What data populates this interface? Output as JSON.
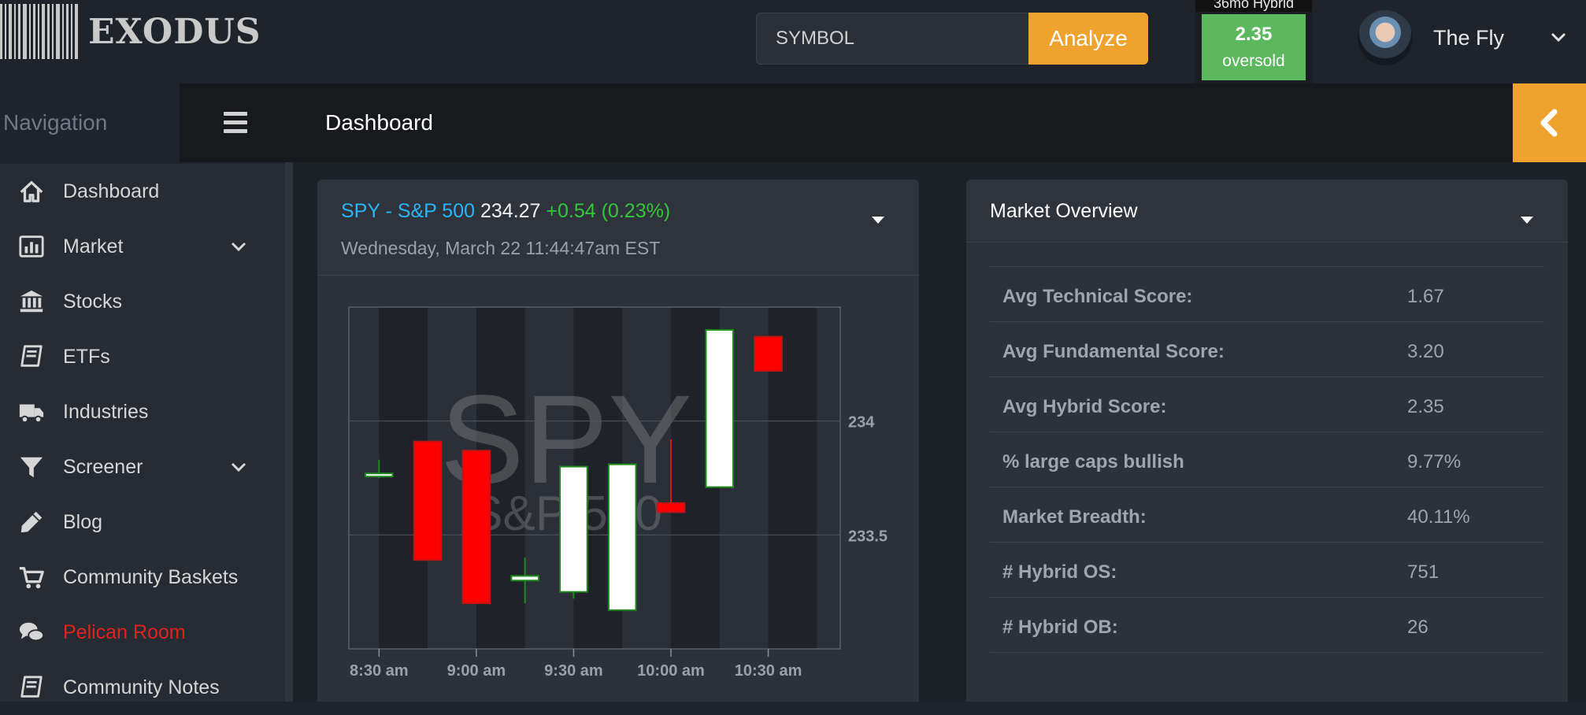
{
  "brand": {
    "name": "EXODUS"
  },
  "search": {
    "placeholder": "SYMBOL",
    "button_label": "Analyze"
  },
  "hybrid": {
    "label": "36mo Hybrid",
    "value": "2.35",
    "status": "oversold",
    "color": "#5cb85c"
  },
  "user": {
    "name": "The Fly"
  },
  "navigation": {
    "title": "Navigation",
    "items": [
      {
        "label": "Dashboard",
        "icon": "home-icon",
        "color": "#d6d6d6",
        "chevron": false
      },
      {
        "label": "Market",
        "icon": "bar-chart-icon",
        "color": "#d6d6d6",
        "chevron": true
      },
      {
        "label": "Stocks",
        "icon": "bank-icon",
        "color": "#d6d6d6",
        "chevron": false
      },
      {
        "label": "ETFs",
        "icon": "book-icon",
        "color": "#d6d6d6",
        "chevron": false
      },
      {
        "label": "Industries",
        "icon": "truck-icon",
        "color": "#d6d6d6",
        "chevron": false
      },
      {
        "label": "Screener",
        "icon": "filter-icon",
        "color": "#d6d6d6",
        "chevron": true
      },
      {
        "label": "Blog",
        "icon": "pencil-icon",
        "color": "#d6d6d6",
        "chevron": false
      },
      {
        "label": "Community Baskets",
        "icon": "cart-icon",
        "color": "#d6d6d6",
        "chevron": false
      },
      {
        "label": "Pelican Room",
        "icon": "chat-icon",
        "color": "#e0231c",
        "chevron": false
      },
      {
        "label": "Community Notes",
        "icon": "book-icon",
        "color": "#d6d6d6",
        "chevron": false
      }
    ]
  },
  "header": {
    "title": "Dashboard"
  },
  "spy_card": {
    "symbol": "SPY - S&P 500",
    "price": "234.27",
    "change": "+0.54 (0.23%)",
    "date": "Wednesday, March 22 11:44:47am EST",
    "watermark_symbol": "SPY",
    "watermark_name": "S&P 500"
  },
  "chart_data": {
    "type": "candlestick",
    "x_ticks": [
      "8:30 am",
      "9:00 am",
      "9:30 am",
      "10:00 am",
      "10:30 am"
    ],
    "y_ticks": [
      234,
      233.5
    ],
    "ylim": [
      233.0,
      234.5
    ],
    "up_color": "#ffffff",
    "down_color": "#ff0000",
    "candles": [
      {
        "time": "8:30",
        "open": 233.77,
        "high": 233.83,
        "low": 233.75,
        "close": 233.77
      },
      {
        "time": "8:45",
        "open": 233.91,
        "high": 233.91,
        "low": 233.39,
        "close": 233.39
      },
      {
        "time": "9:00",
        "open": 233.87,
        "high": 233.87,
        "low": 233.2,
        "close": 233.2
      },
      {
        "time": "9:15",
        "open": 233.3,
        "high": 233.4,
        "low": 233.2,
        "close": 233.32
      },
      {
        "time": "9:30",
        "open": 233.25,
        "high": 233.8,
        "low": 233.22,
        "close": 233.8
      },
      {
        "time": "9:45",
        "open": 233.17,
        "high": 233.81,
        "low": 233.17,
        "close": 233.81
      },
      {
        "time": "10:00",
        "open": 233.64,
        "high": 233.92,
        "low": 233.6,
        "close": 233.6
      },
      {
        "time": "10:15",
        "open": 233.71,
        "high": 234.4,
        "low": 233.71,
        "close": 234.4
      },
      {
        "time": "10:30",
        "open": 234.37,
        "high": 234.37,
        "low": 234.22,
        "close": 234.22
      }
    ]
  },
  "market_overview": {
    "title": "Market Overview",
    "rows": [
      {
        "label": "Avg Technical Score:",
        "value": "1.67"
      },
      {
        "label": "Avg Fundamental Score:",
        "value": "3.20"
      },
      {
        "label": "Avg Hybrid Score:",
        "value": "2.35"
      },
      {
        "label": "% large caps bullish",
        "value": "9.77%"
      },
      {
        "label": "Market Breadth:",
        "value": "40.11%"
      },
      {
        "label": "# Hybrid OS:",
        "value": "751"
      },
      {
        "label": "# Hybrid OB:",
        "value": "26"
      }
    ]
  }
}
